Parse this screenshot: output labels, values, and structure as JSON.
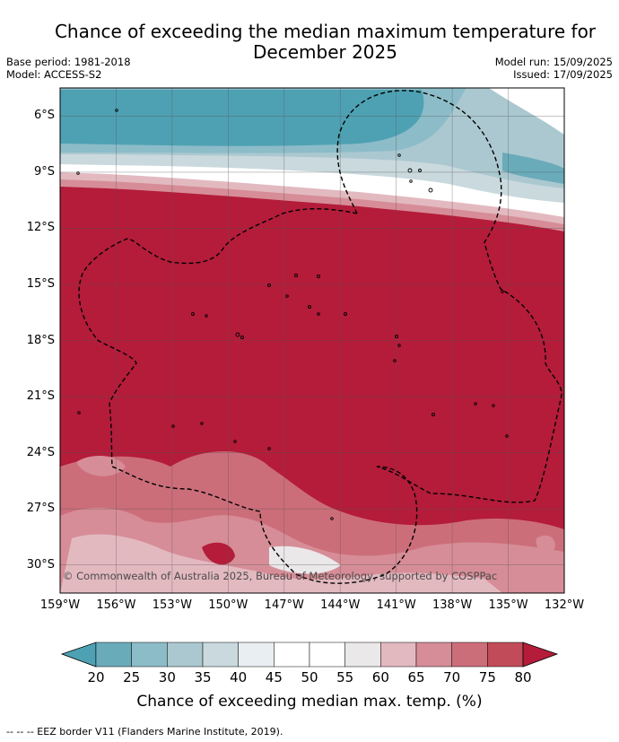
{
  "title_line1": "Chance of exceeding the median maximum temperature for",
  "title_line2": "December 2025",
  "base_period": "Base period: 1981-2018",
  "model": "Model: ACCESS-S2",
  "model_run": "Model run: 15/09/2025",
  "issued": "Issued: 17/09/2025",
  "copyright": "© Commonwealth of Australia 2025, Bureau of Meteorology, supported by COSPPac",
  "footer": "--  --  -- EEZ border V11 (Flanders Marine Institute, 2019).",
  "map": {
    "lon_range": [
      -159,
      -132
    ],
    "lat_range": [
      -31.5,
      -4.5
    ],
    "lat_ticks": [
      "6°S",
      "9°S",
      "12°S",
      "15°S",
      "18°S",
      "21°S",
      "24°S",
      "27°S",
      "30°S"
    ],
    "lon_ticks": [
      "159°W",
      "156°W",
      "153°W",
      "150°W",
      "147°W",
      "144°W",
      "141°W",
      "138°W",
      "135°W",
      "132°W"
    ],
    "grid": true,
    "dominant_category": "80"
  },
  "colorbar": {
    "label": "Chance of exceeding median max. temp. (%)",
    "ticks": [
      "20",
      "25",
      "30",
      "35",
      "40",
      "45",
      "50",
      "55",
      "60",
      "65",
      "70",
      "75",
      "80"
    ],
    "colors": [
      "#6aabba",
      "#8cbcc8",
      "#abc8d0",
      "#c9d9de",
      "#e8eef1",
      "#ffffff",
      "#ffffff",
      "#ebe8ea",
      "#e3b9c0",
      "#d68d97",
      "#cc6e7a",
      "#c14b59"
    ],
    "under_color": "#4ea1b3",
    "over_color": "#b41c3a"
  }
}
